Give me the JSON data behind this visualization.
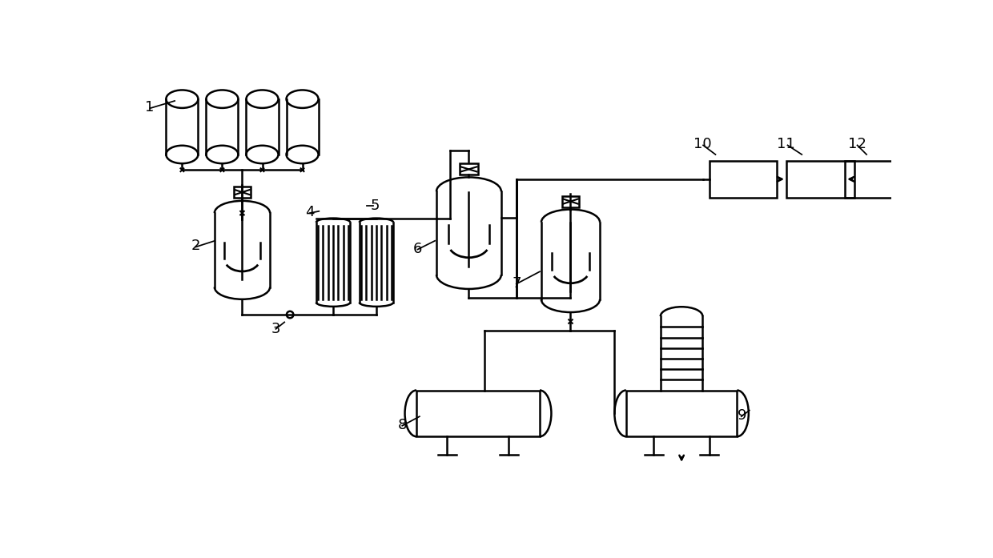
{
  "bg_color": "#ffffff",
  "lc": "#000000",
  "lw": 1.8,
  "figsize": [
    12.4,
    6.97
  ],
  "dpi": 100,
  "xlim": [
    0,
    124
  ],
  "ylim": [
    0,
    69.7
  ]
}
